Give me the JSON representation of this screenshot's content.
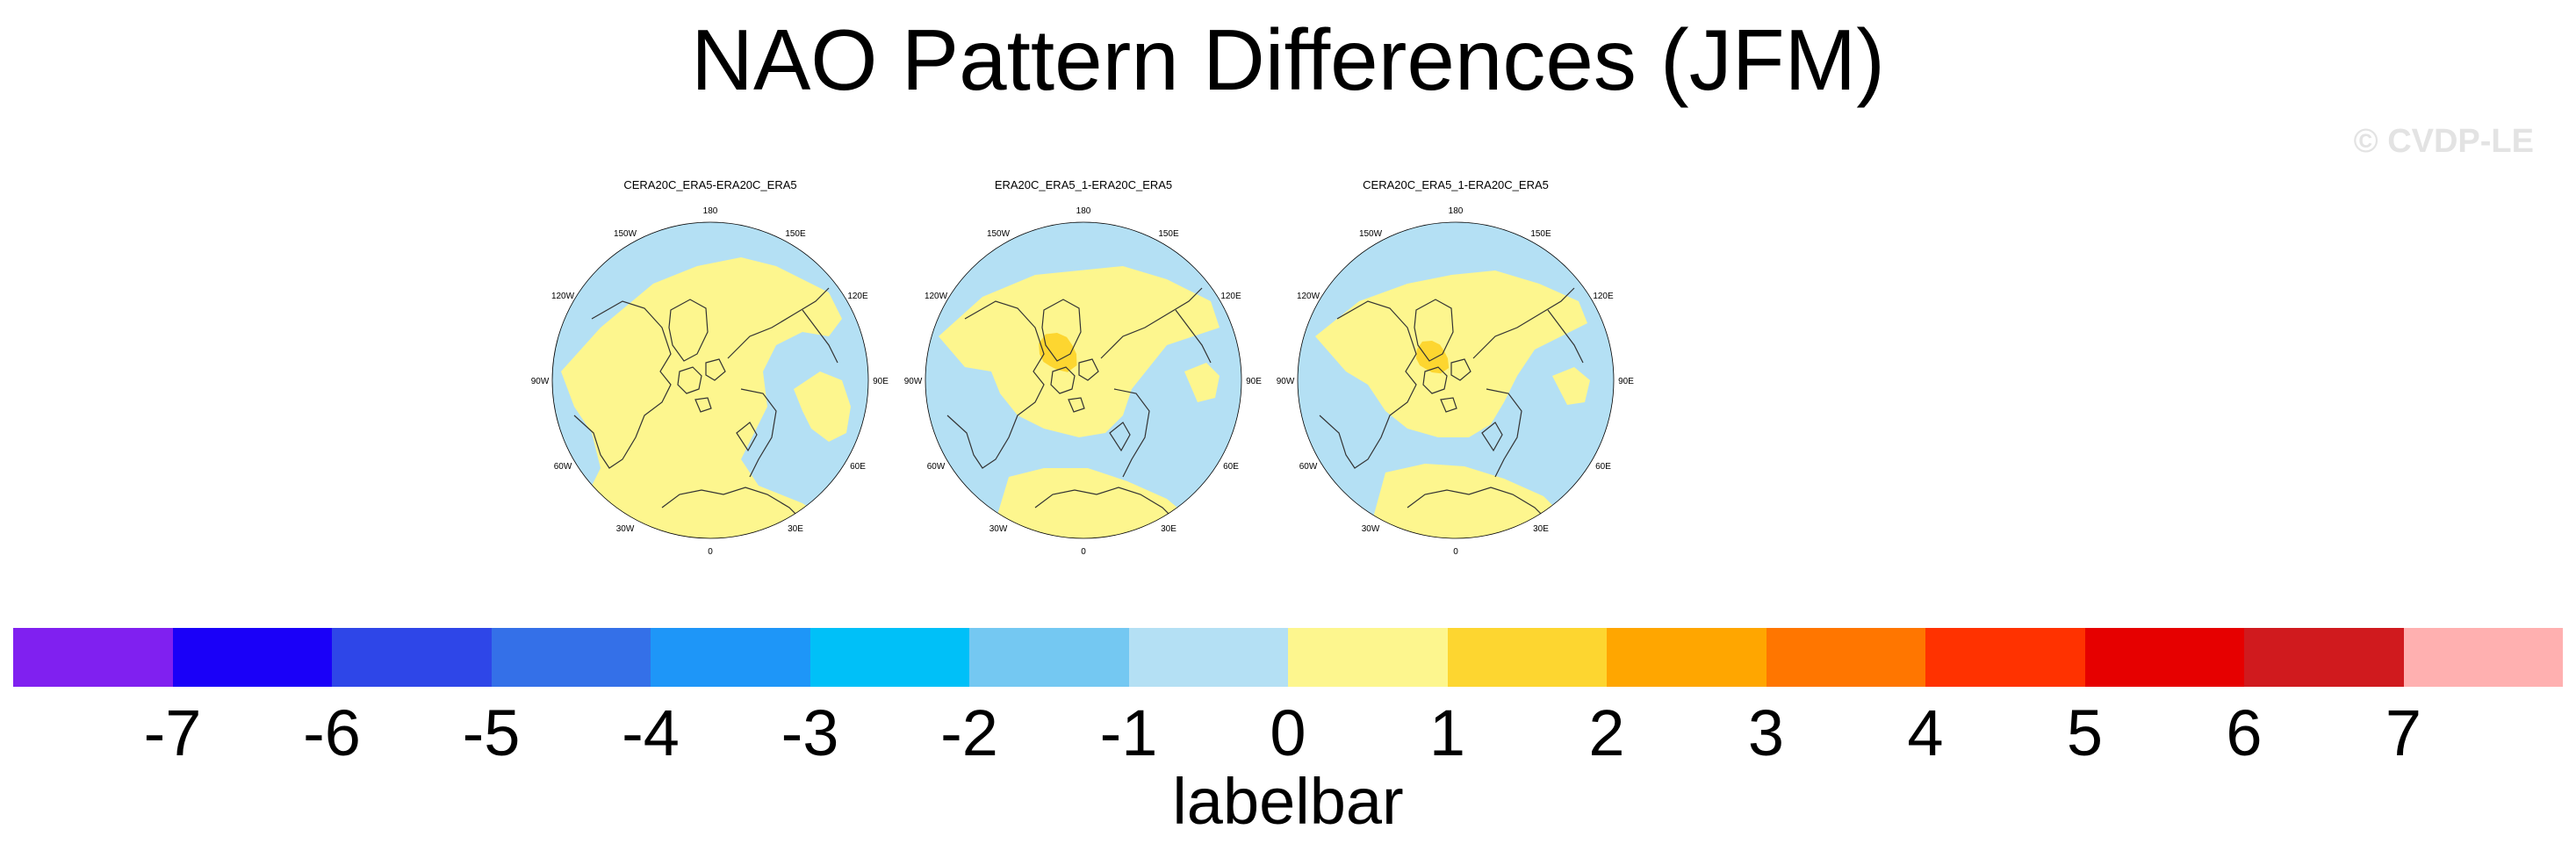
{
  "title": "NAO Pattern Differences (JFM)",
  "watermark": "© CVDP-LE",
  "lon_labels": [
    "180",
    "150E",
    "120E",
    "90E",
    "60E",
    "30E",
    "0",
    "30W",
    "60W",
    "90W",
    "120W",
    "150W"
  ],
  "colors": {
    "ocean": "#b4e0f4",
    "land": "#fdf68e",
    "positive_2": "#fdd630",
    "coast": "#333333"
  },
  "panels": [
    {
      "title": "CERA20C_ERA5-ERA20C_ERA5"
    },
    {
      "title": "ERA20C_ERA5_1-ERA20C_ERA5"
    },
    {
      "title": "CERA20C_ERA5_1-ERA20C_ERA5"
    }
  ],
  "labelbar": {
    "caption": "labelbar",
    "colors": [
      "#8020f0",
      "#1a00f8",
      "#2e46e8",
      "#3470e8",
      "#1e96f8",
      "#00c0f8",
      "#74c8f2",
      "#b4e0f4",
      "#fdf68e",
      "#fdd630",
      "#ffa600",
      "#ff7600",
      "#ff3200",
      "#e60000",
      "#d01a1e",
      "#ffb0b0"
    ],
    "ticks": [
      "-7",
      "-6",
      "-5",
      "-4",
      "-3",
      "-2",
      "-1",
      "0",
      "1",
      "2",
      "3",
      "4",
      "5",
      "6",
      "7"
    ]
  }
}
